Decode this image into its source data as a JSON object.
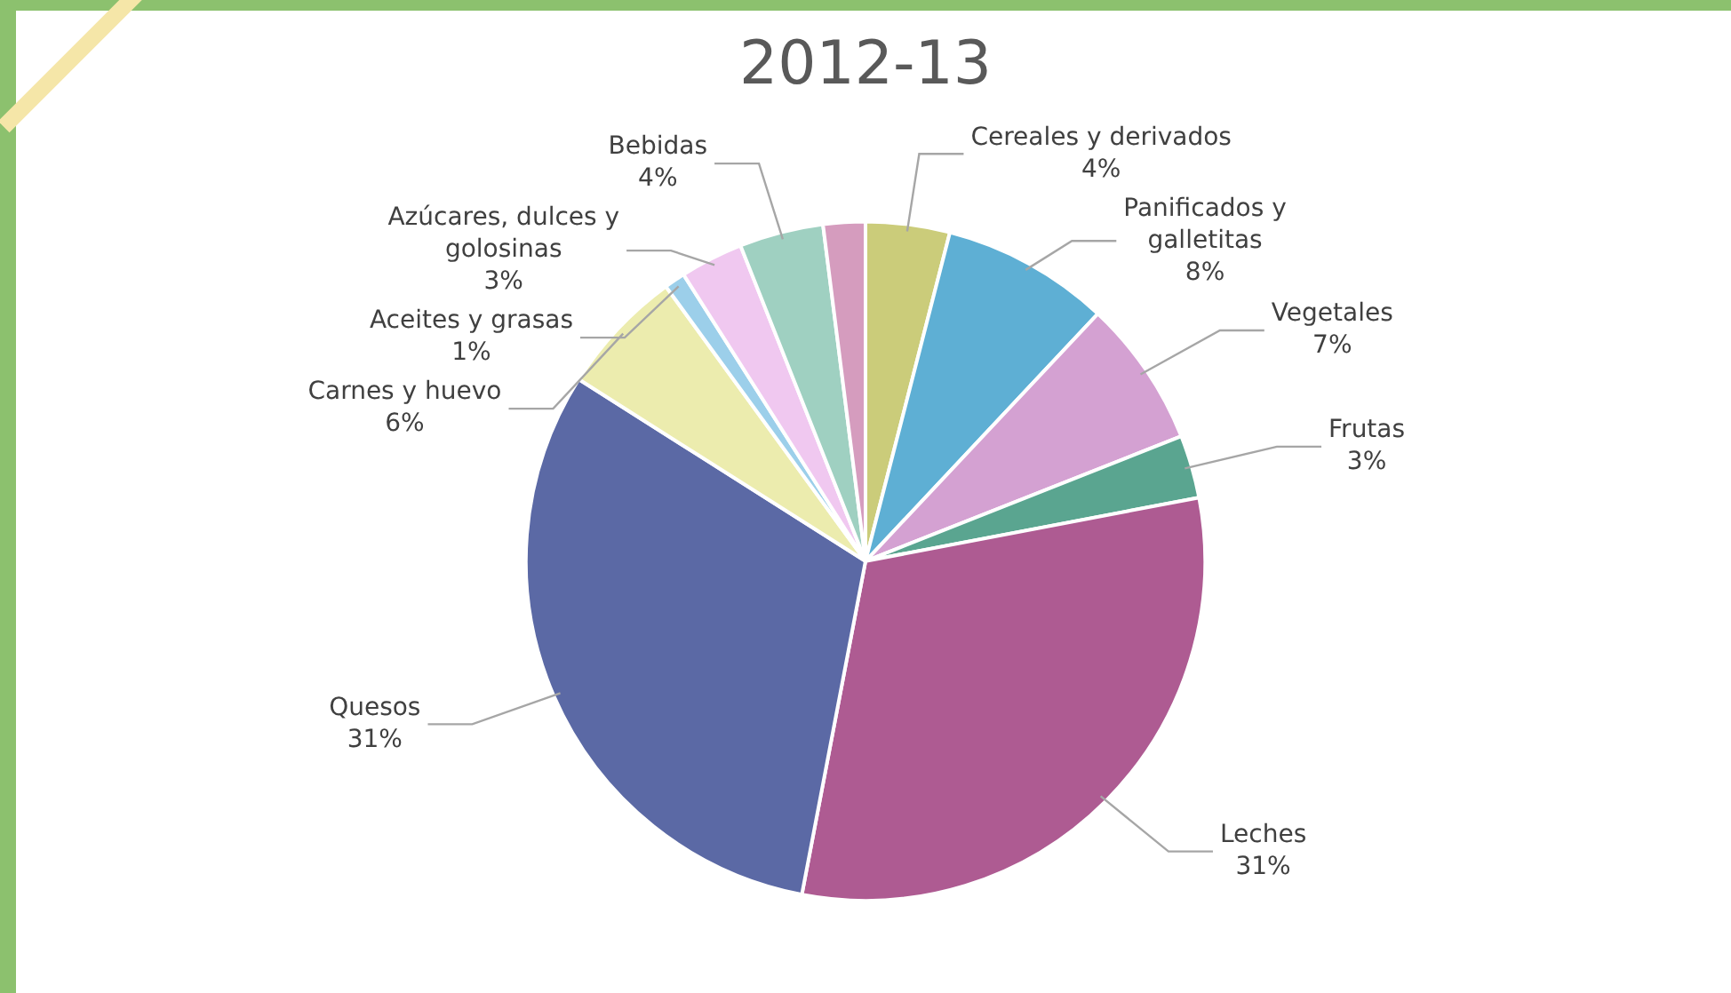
{
  "chart_data": {
    "type": "pie",
    "title": "2012-13",
    "categories": [
      "Cereales y derivados",
      "Panificados y galletitas",
      "Vegetales",
      "Frutas",
      "Leches",
      "Quesos",
      "Carnes y huevo",
      "Aceites y grasas",
      "Azúcares, dulces y golosinas",
      "Bebidas",
      null
    ],
    "values": [
      4,
      8,
      7,
      3,
      31,
      31,
      6,
      1,
      3,
      4,
      2
    ],
    "value_labels": [
      "4%",
      "8%",
      "7%",
      "3%",
      "31%",
      "31%",
      "6%",
      "1%",
      "3%",
      "4%",
      null
    ],
    "colors": [
      "#cbcc7a",
      "#5eafd4",
      "#d4a1d2",
      "#5aa590",
      "#ae5b92",
      "#5b69a5",
      "#ececae",
      "#9ccfea",
      "#f0c8f0",
      "#9fd0c1",
      "#d59cbe"
    ],
    "legend": false
  }
}
